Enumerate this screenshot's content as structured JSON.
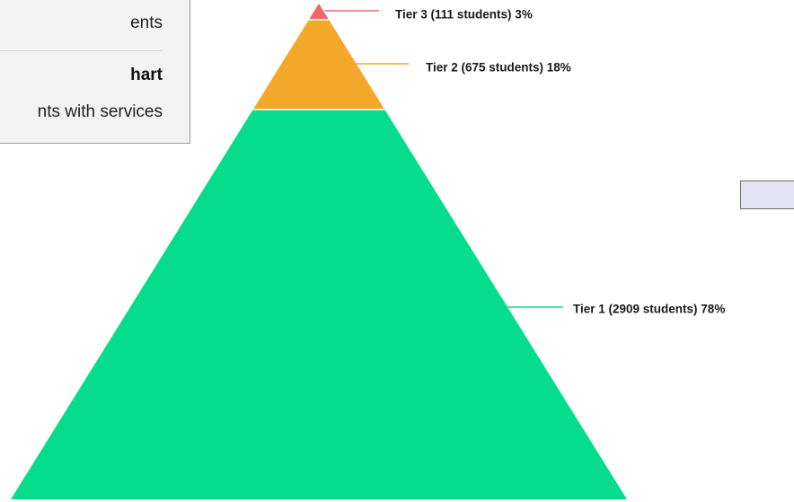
{
  "menu": {
    "items": [
      {
        "label": "ents",
        "bold": false
      },
      {
        "label": "hart",
        "bold": true
      },
      {
        "label": "nts with services",
        "bold": false
      }
    ]
  },
  "chart_data": {
    "type": "pyramid",
    "title": "",
    "tiers": [
      {
        "name": "Tier 3",
        "students": 111,
        "percent": 3,
        "label": "Tier 3 (111 students) 3%",
        "color": "#f0666a"
      },
      {
        "name": "Tier 2",
        "students": 675,
        "percent": 18,
        "label": "Tier 2 (675 students) 18%",
        "color": "#f4a82a"
      },
      {
        "name": "Tier 1",
        "students": 2909,
        "percent": 78,
        "label": "Tier 1 (2909 students) 78%",
        "color": "#05dd8c"
      }
    ]
  }
}
